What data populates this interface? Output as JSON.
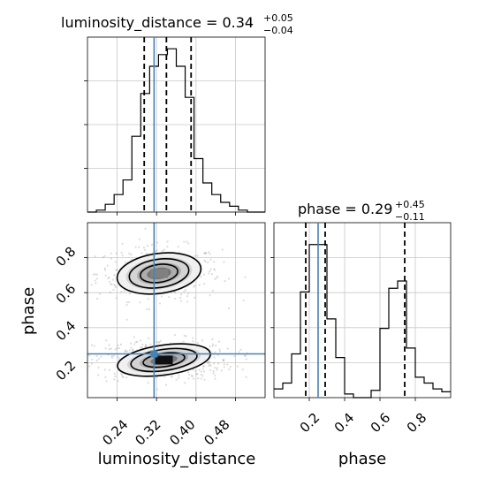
{
  "colors": {
    "truth": "#4682b4",
    "hist": "#000000",
    "quantile": "#000000",
    "grid": "#c8c8c8",
    "scatter": "#9a9a9a"
  },
  "chart_data": {
    "type": "corner",
    "params": [
      "luminosity_distance",
      "phase"
    ],
    "truths": {
      "luminosity_distance": 0.315,
      "phase": 0.25
    },
    "panels": [
      {
        "id": "luminosity_distance_hist",
        "type": "histogram",
        "param": "luminosity_distance",
        "title_main": "luminosity_distance = 0.34",
        "title_plus": "+0.05",
        "title_minus": "−0.04",
        "xlim": [
          0.18,
          0.54
        ],
        "bin_edges": [
          0.18,
          0.198,
          0.216,
          0.234,
          0.252,
          0.27,
          0.288,
          0.306,
          0.324,
          0.342,
          0.36,
          0.378,
          0.396,
          0.414,
          0.432,
          0.45,
          0.468,
          0.486,
          0.504,
          0.522,
          0.54
        ],
        "counts": [
          0,
          2,
          8,
          18,
          33,
          78,
          122,
          150,
          162,
          168,
          150,
          118,
          55,
          30,
          18,
          10,
          6,
          2,
          0,
          0
        ],
        "ymax": 180,
        "quantiles": [
          0.295,
          0.34,
          0.39
        ],
        "truth": 0.315
      },
      {
        "id": "phase_vs_luminosity_distance",
        "type": "scatter-contour",
        "xparam": "luminosity_distance",
        "yparam": "phase",
        "xlabel": "luminosity_distance",
        "ylabel": "phase",
        "xlim": [
          0.18,
          0.54
        ],
        "ylim": [
          0.0,
          1.0
        ],
        "xticks": [
          "0.24",
          "0.32",
          "0.40",
          "0.48"
        ],
        "yticks": [
          "0.2",
          "0.4",
          "0.6",
          "0.8"
        ],
        "modes": [
          {
            "cx": 0.325,
            "cy": 0.71,
            "sx": 0.045,
            "sy": 0.06,
            "weight": 0.45
          },
          {
            "cx": 0.335,
            "cy": 0.215,
            "sx": 0.05,
            "sy": 0.045,
            "weight": 0.55
          }
        ],
        "truth": {
          "x": 0.315,
          "y": 0.25
        }
      },
      {
        "id": "phase_hist",
        "type": "histogram",
        "param": "phase",
        "xlabel": "phase",
        "title_main": "phase = 0.29",
        "title_plus": "+0.45",
        "title_minus": "−0.11",
        "xlim": [
          0.0,
          1.0
        ],
        "xticks": [
          "0.2",
          "0.4",
          "0.6",
          "0.8"
        ],
        "bin_edges": [
          0.0,
          0.05,
          0.1,
          0.15,
          0.2,
          0.25,
          0.3,
          0.35,
          0.4,
          0.45,
          0.5,
          0.55,
          0.6,
          0.65,
          0.7,
          0.75,
          0.8,
          0.85,
          0.9,
          0.95,
          1.0
        ],
        "counts": [
          12,
          20,
          60,
          145,
          210,
          210,
          108,
          55,
          5,
          0,
          0,
          10,
          95,
          150,
          160,
          68,
          28,
          20,
          12,
          8
        ],
        "ymax": 240,
        "quantiles": [
          0.18,
          0.29,
          0.74
        ],
        "truth": 0.25
      }
    ]
  }
}
